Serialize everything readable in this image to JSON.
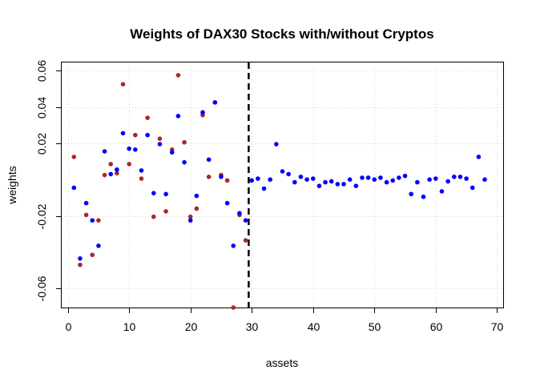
{
  "chart_data": {
    "type": "scatter",
    "title": "Weights of DAX30 Stocks with/without Cryptos",
    "xlabel": "assets",
    "ylabel": "weights",
    "xlim": [
      -1,
      71
    ],
    "ylim": [
      -0.0705,
      0.0645
    ],
    "x_ticks": [
      0,
      10,
      20,
      30,
      40,
      50,
      60,
      70
    ],
    "y_ticks": [
      -0.06,
      -0.02,
      0.02,
      0.04,
      0.06
    ],
    "grid": true,
    "legend": "none",
    "vline_x": 29.5,
    "colors": {
      "with_cryptos": "#0000FF",
      "without_cryptos": "#A52A2A"
    },
    "series": [
      {
        "key": "with_cryptos",
        "x": [
          1,
          2,
          3,
          4,
          5,
          6,
          7,
          8,
          9,
          10,
          11,
          12,
          13,
          14,
          15,
          16,
          17,
          18,
          19,
          20,
          21,
          22,
          23,
          24,
          25,
          26,
          27,
          28,
          29,
          30,
          31,
          32,
          33,
          34,
          35,
          36,
          37,
          38,
          39,
          40,
          41,
          42,
          43,
          44,
          45,
          46,
          47,
          48,
          49,
          50,
          51,
          52,
          53,
          54,
          55,
          56,
          57,
          58,
          59,
          60,
          61,
          62,
          63,
          64,
          65,
          66,
          67,
          68
        ],
        "y": [
          -0.0045,
          -0.0435,
          -0.013,
          -0.0225,
          -0.0365,
          0.0155,
          0.003,
          0.0055,
          0.0255,
          0.017,
          0.0165,
          0.005,
          0.0245,
          -0.0075,
          0.0195,
          -0.008,
          0.015,
          0.035,
          0.0095,
          -0.0225,
          -0.009,
          0.037,
          0.011,
          0.0425,
          0.0015,
          -0.013,
          -0.0365,
          -0.0185,
          -0.0225,
          -0.0005,
          0.0005,
          -0.005,
          0.0,
          0.0195,
          0.0045,
          0.003,
          -0.0015,
          0.0015,
          0.0,
          0.0005,
          -0.0035,
          -0.0015,
          -0.001,
          -0.0025,
          -0.0025,
          0.0,
          -0.0035,
          0.001,
          0.001,
          0.0,
          0.001,
          -0.0015,
          -0.0005,
          0.001,
          0.002,
          -0.008,
          -0.0015,
          -0.0095,
          0.0,
          0.0005,
          -0.0065,
          -0.001,
          0.0015,
          0.0015,
          0.0005,
          -0.0045,
          0.0125,
          0.0
        ]
      },
      {
        "key": "without_cryptos",
        "x": [
          1,
          2,
          3,
          4,
          5,
          6,
          7,
          8,
          9,
          10,
          11,
          12,
          13,
          14,
          15,
          16,
          17,
          18,
          19,
          20,
          21,
          22,
          23,
          24,
          25,
          26,
          27,
          28,
          29
        ],
        "y": [
          0.0125,
          -0.047,
          -0.0195,
          -0.0415,
          -0.0225,
          0.0025,
          0.0085,
          0.0035,
          0.0525,
          0.0085,
          0.0245,
          0.0005,
          0.034,
          -0.0205,
          0.0225,
          -0.0175,
          0.0165,
          0.0575,
          0.0205,
          -0.0205,
          -0.016,
          0.0355,
          0.0015,
          0.0425,
          0.0025,
          -0.0005,
          -0.0705,
          -0.0195,
          -0.0335
        ]
      }
    ]
  }
}
